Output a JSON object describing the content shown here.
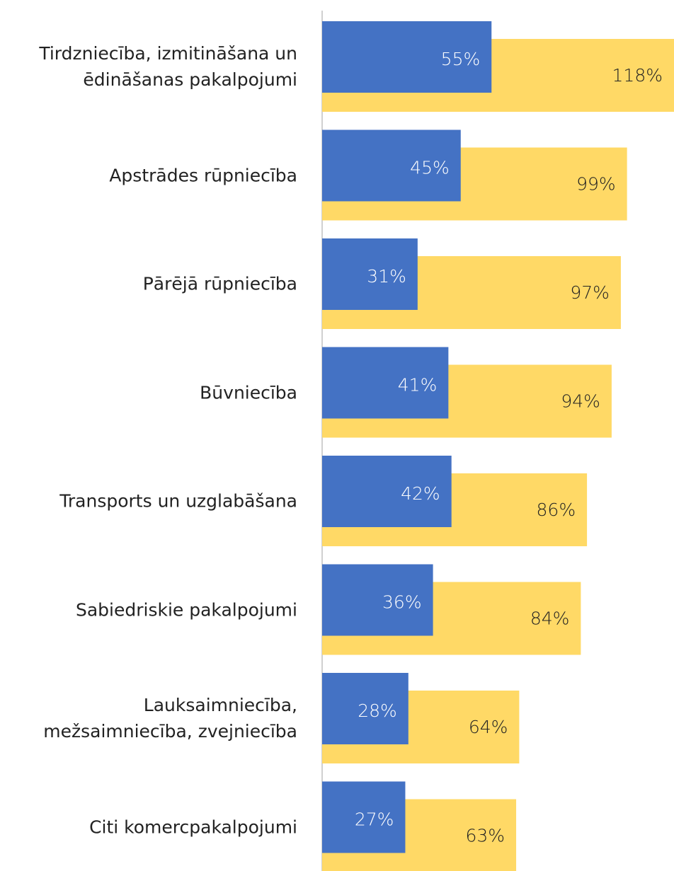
{
  "chart_data": {
    "type": "overlapped-bar",
    "categories": [
      "Tirdzniecība, izmitināšana un ēdināšanas pakalpojumi",
      "Apstrādes rūpniecība",
      "Pārējā rūpniecība",
      "Būvniecība",
      "Transports un uzglabāšana",
      "Sabiedriskie pakalpojumi",
      "Lauksaimniecība, mežsaimniecība, zvejniecība",
      "Citi komercpakalpojumi"
    ],
    "series": [
      {
        "color": "#ffd966",
        "values": [
          118,
          99,
          97,
          94,
          86,
          84,
          64,
          63
        ],
        "value_labels": [
          "118%",
          "99%",
          "97%",
          "94%",
          "86%",
          "84%",
          "64%",
          "63%"
        ]
      },
      {
        "color": "#4472c4",
        "values": [
          55,
          45,
          31,
          41,
          42,
          36,
          28,
          27
        ],
        "value_labels": [
          "55%",
          "45%",
          "31%",
          "41%",
          "42%",
          "36%",
          "28%",
          "27%"
        ]
      }
    ]
  }
}
